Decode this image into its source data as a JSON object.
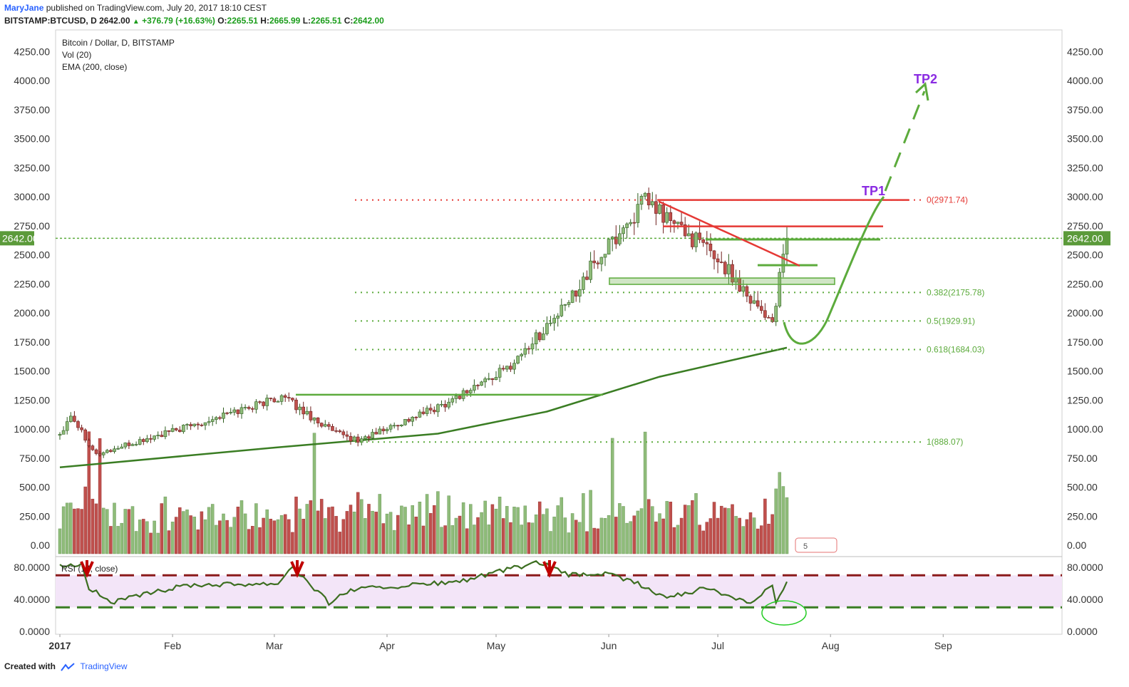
{
  "header": {
    "author": "MaryJane",
    "published_text": "published on TradingView.com, July 20, 2017 18:10 CEST",
    "symbol": "BITSTAMP:BTCUSD, D",
    "last": "2642.00",
    "change": "+376.79 (+16.63%)",
    "o_label": "O:",
    "o": "2265.51",
    "h_label": "H:",
    "h": "2665.99",
    "l_label": "L:",
    "l": "2265.51",
    "c_label": "C:",
    "c": "2642.00"
  },
  "legend": [
    "Bitcoin / Dollar, D, BITSTAMP",
    "Vol (20)",
    "EMA (200, close)"
  ],
  "price_axis_labels": [
    "4250.00",
    "4000.00",
    "3750.00",
    "3500.00",
    "3250.00",
    "3000.00",
    "2750.00",
    "2500.00",
    "2250.00",
    "2000.00",
    "1750.00",
    "1500.00",
    "1250.00",
    "1000.00",
    "750.00",
    "500.00",
    "250.00",
    "0.00"
  ],
  "rsi_axis_labels": [
    "80.0000",
    "40.0000",
    "0.0000"
  ],
  "rsi_label": "RSI (14, close)",
  "current_price_label": "2642.00",
  "volume_badge": "5",
  "time_labels": [
    "2017",
    "Feb",
    "Mar",
    "Apr",
    "May",
    "Jun",
    "Jul",
    "Aug",
    "Sep"
  ],
  "fib_labels": [
    "0(2971.74)",
    "0.382(2175.78)",
    "0.5(1929.91)",
    "0.618(1684.03)",
    "1(888.07)"
  ],
  "targets": [
    "TP1",
    "TP2"
  ],
  "footer": {
    "created_with": "Created with",
    "brand": "TradingView"
  },
  "colors": {
    "up": "#8fbc7a",
    "down": "#c0504d",
    "ema": "#3a7d23",
    "fib": "#5cab3c",
    "red_level": "#e53935",
    "target": "#8a2be2",
    "rsi_band": "#f3e5f8",
    "rsi_line": "#3c6e20",
    "rsi_upper": "#8b1a1a",
    "rsi_lower": "#3a7d23",
    "price_tag": "#5b9a3a"
  },
  "chart_data": {
    "type": "candlestick",
    "symbol": "BITSTAMP:BTCUSD",
    "interval": "D",
    "ylim": [
      0,
      4350
    ],
    "rsi_ylim": [
      0,
      100
    ],
    "rsi_levels": [
      70,
      30
    ],
    "fib_levels": [
      {
        "ratio": 0,
        "price": 2971.74
      },
      {
        "ratio": 0.382,
        "price": 2175.78
      },
      {
        "ratio": 0.5,
        "price": 1929.91
      },
      {
        "ratio": 0.618,
        "price": 1684.03
      },
      {
        "ratio": 1,
        "price": 888.07
      }
    ],
    "key_closes": [
      {
        "date": "2017-01-01",
        "close": 960
      },
      {
        "date": "2017-01-04",
        "close": 1130
      },
      {
        "date": "2017-01-11",
        "close": 780
      },
      {
        "date": "2017-02-01",
        "close": 980
      },
      {
        "date": "2017-03-03",
        "close": 1280
      },
      {
        "date": "2017-03-18",
        "close": 960
      },
      {
        "date": "2017-03-24",
        "close": 900
      },
      {
        "date": "2017-04-15",
        "close": 1190
      },
      {
        "date": "2017-05-04",
        "close": 1520
      },
      {
        "date": "2017-05-20",
        "close": 2050
      },
      {
        "date": "2017-05-25",
        "close": 2300
      },
      {
        "date": "2017-06-11",
        "close": 2960
      },
      {
        "date": "2017-06-30",
        "close": 2500
      },
      {
        "date": "2017-07-16",
        "close": 1920
      },
      {
        "date": "2017-07-20",
        "close": 2642
      }
    ],
    "ema200": [
      {
        "date": "2017-01-01",
        "value": 670
      },
      {
        "date": "2017-03-01",
        "value": 840
      },
      {
        "date": "2017-04-15",
        "value": 960
      },
      {
        "date": "2017-05-15",
        "value": 1150
      },
      {
        "date": "2017-06-15",
        "value": 1450
      },
      {
        "date": "2017-07-20",
        "value": 1700
      }
    ],
    "volume_max": 1010,
    "last_price": 2642.0,
    "targets": [
      {
        "name": "TP1",
        "price": 2971.74
      },
      {
        "name": "TP2",
        "price": 4000
      }
    ]
  }
}
